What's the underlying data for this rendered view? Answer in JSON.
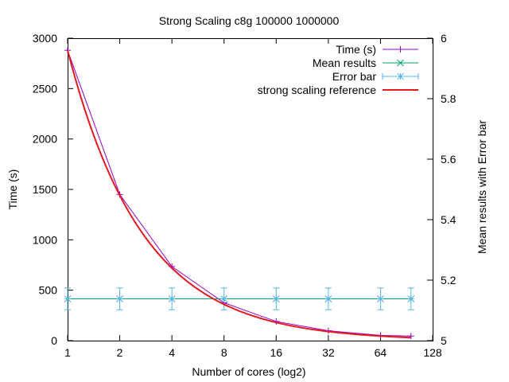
{
  "chart_data": {
    "type": "line",
    "title": "Strong Scaling c8g 100000 1000000",
    "xlabel": "Number of cores (log2)",
    "ylabel": "Time (s)",
    "y2label": "Mean results with Error bar",
    "xscale": "log2",
    "xlim": [
      1,
      128
    ],
    "ylim": [
      0,
      3000
    ],
    "y2lim": [
      5,
      6
    ],
    "xticks": [
      1,
      2,
      4,
      8,
      16,
      32,
      64,
      128
    ],
    "yticks": [
      0,
      500,
      1000,
      1500,
      2000,
      2500,
      3000
    ],
    "y2ticks": [
      5,
      5.2,
      5.4,
      5.6,
      5.8,
      6
    ],
    "legend_position": "top-right",
    "grid": false,
    "series": [
      {
        "name": "Time (s)",
        "axis": "y",
        "color": "#9400d3",
        "marker": "plus",
        "x": [
          1,
          2,
          4,
          8,
          16,
          32,
          64,
          96
        ],
        "y": [
          2880,
          1450,
          735,
          375,
          190,
          98,
          52,
          45
        ]
      },
      {
        "name": "Mean results",
        "axis": "y2",
        "color": "#009e73",
        "marker": "cross",
        "x": [
          1,
          2,
          4,
          8,
          16,
          32,
          64,
          96
        ],
        "y": [
          5.138,
          5.138,
          5.138,
          5.138,
          5.138,
          5.138,
          5.138,
          5.138
        ]
      },
      {
        "name": "Error bar",
        "axis": "y2",
        "color": "#56b4e9",
        "marker": "star",
        "x": [
          1,
          2,
          4,
          8,
          16,
          32,
          64,
          96
        ],
        "y": [
          5.138,
          5.138,
          5.138,
          5.138,
          5.138,
          5.138,
          5.138,
          5.138
        ],
        "err": 0.036
      },
      {
        "name": "strong scaling reference",
        "axis": "y",
        "color": "#e41a1c",
        "reference": true,
        "x": [
          1,
          96
        ],
        "y0": 2880
      }
    ]
  }
}
